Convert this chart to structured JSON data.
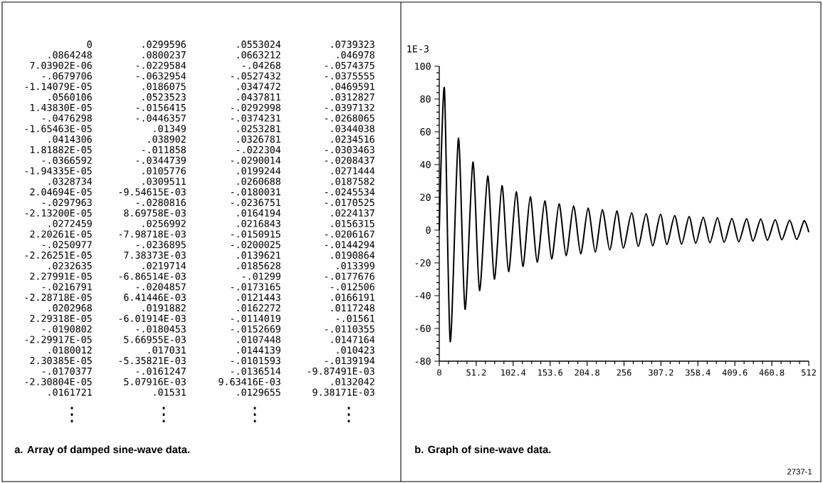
{
  "chart_data": [
    {
      "type": "other",
      "title": "a. Array of damped sine-wave data.",
      "annotations": [
        "0",
        ".0299596",
        ".0553024",
        ".0739323",
        ".0864248",
        ".0800237",
        ".0663212",
        ".046978",
        "7.03902E-06",
        "-.0229584",
        "-.04268",
        "-.0574375",
        "-.0679706",
        "-.0632954",
        "-.0527432",
        "-.0375555",
        "-1.14079E-05",
        ".0186075",
        ".0347472",
        ".0469591",
        ".0560106",
        ".0523523",
        ".0437811",
        ".0312827",
        "1.43830E-05",
        "-.0156415",
        "-.0292998",
        "-.0397132",
        "-.0476298",
        "-.0446357",
        "-.0374231",
        "-.0268065",
        "-1.65463E-05",
        ".01349",
        ".0253281",
        ".0344038",
        ".0414306",
        ".038902",
        ".0326781",
        ".0234516",
        "1.81882E-05",
        "-.011858",
        "-.022304",
        "-.0303463",
        "-.0366592",
        "-.0344739",
        "-.0290014",
        "-.0208437",
        "-1.94335E-05",
        ".0105776",
        ".0199244",
        ".0271444",
        ".0328734",
        ".0309511",
        ".0260688",
        ".0187582",
        "2.04694E-05",
        "-9.54615E-03",
        "-.0180031",
        "-.0245534",
        "-.0297963",
        "-.0280816",
        "-.0236751",
        "-.0170525",
        "-2.13200E-05",
        "8.69758E-03",
        ".0164194",
        ".0224137",
        ".0272459",
        ".0256992",
        ".0216843",
        ".0156315",
        "2.20261E-05",
        "-7.98718E-03",
        "-.0150915",
        "-.0206167",
        "-.0250977",
        "-.0236895",
        "-.0200025",
        "-.0144294",
        "-2.26251E-05",
        "7.38373E-03",
        ".0139621",
        ".0190864",
        ".0232635",
        ".0219714",
        ".0185628",
        ".013399",
        "2.27991E-05",
        "-6.86514E-03",
        "-.01299",
        "-.0177676",
        "-.0216791",
        "-.0204857",
        "-.0173165",
        "-.012506",
        "-2.28718E-05",
        "6.41446E-03",
        ".0121443",
        ".0166191",
        ".0202968",
        ".0191882",
        ".0162272",
        ".0117248",
        "2.29318E-05",
        "-6.01914E-03",
        "-.0114019",
        "-.01561",
        "-.0190802",
        "-.0180453",
        "-.0152669",
        "-.0110355",
        "-2.29917E-05",
        "5.66955E-03",
        ".0107448",
        ".0147164",
        ".0180012",
        ".017031",
        ".0144139",
        ".010423",
        "2.30385E-05",
        "-5.35821E-03",
        "-.0101593",
        "-.0139194",
        "-.0170377",
        "-.0161247",
        "-.0136514",
        "-9.87491E-03",
        "-2.30804E-05",
        "5.07916E-03",
        "9.63416E-03",
        ".0132042",
        ".0161721",
        ".01531",
        ".0129655",
        "9.38171E-03",
        "⋮",
        "⋮",
        "⋮",
        "⋮"
      ]
    },
    {
      "type": "line",
      "title": "b. Graph of sine-wave data.",
      "ylabel": "1E-3",
      "color": "#000000",
      "x": [
        0,
        7.1,
        15.2,
        26.5,
        35.7,
        46.6,
        55.8,
        67.1,
        76.3,
        86.9,
        96,
        106.6,
        115.8,
        126.1,
        135.6,
        146.2,
        155.7,
        166,
        175.8,
        186.1,
        196,
        206.2,
        216.1,
        226,
        236.2,
        246.1,
        255,
        266.5,
        275.7,
        286.5,
        295.7,
        306.5,
        315.3,
        326.2,
        335.7,
        346.2,
        355.3,
        365.8,
        375,
        385.5,
        394.7,
        405.5,
        415,
        425.8,
        434.7,
        445.5,
        454.7,
        465.5,
        474.7,
        485.5,
        495.3,
        505.5,
        512
      ],
      "values": [
        0,
        86.5,
        -68,
        56,
        -48.3,
        41.5,
        -36.9,
        33,
        -29.9,
        27.1,
        -25.3,
        23.4,
        -22.2,
        20.3,
        -19.6,
        17.8,
        -17.6,
        16,
        -15.7,
        14.8,
        -14.5,
        13.5,
        -13.4,
        12.5,
        -12.1,
        11.7,
        -11,
        10.6,
        -9.9,
        10,
        -9.6,
        9.7,
        -8.8,
        8.8,
        -8.6,
        8.3,
        -8.1,
        7.8,
        -7.7,
        7.5,
        -7.4,
        7.1,
        -7.1,
        7,
        -6.7,
        6.7,
        -6.2,
        6.4,
        -5.9,
        6.1,
        -5.7,
        5.7,
        -1.3
      ],
      "xlim": [
        0,
        512
      ],
      "ylim": [
        -80,
        100
      ],
      "xticks": [
        0,
        51.2,
        102.4,
        153.6,
        204.8,
        256,
        307.2,
        358.4,
        409.6,
        460.8,
        512
      ],
      "yticks": [
        -80,
        -60,
        -40,
        -20,
        0,
        20,
        40,
        60,
        80,
        100
      ],
      "annotations": [
        "2737-1"
      ]
    }
  ]
}
